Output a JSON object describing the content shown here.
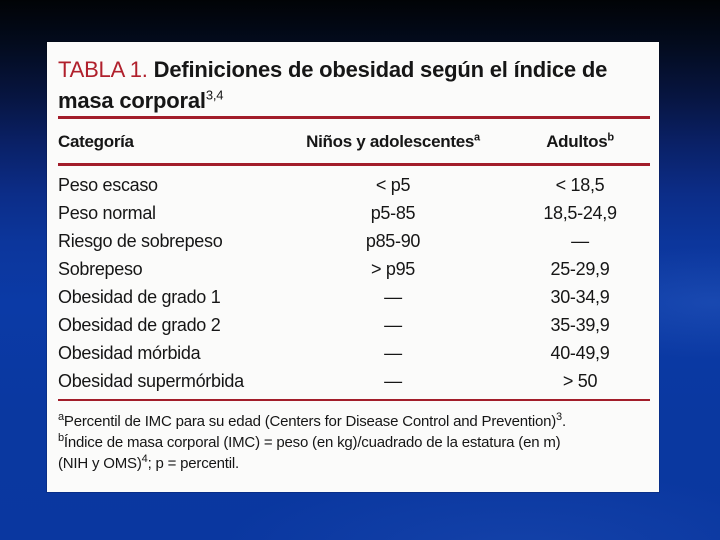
{
  "colors": {
    "title-red": "#b0202c",
    "accent-red": "#a21d2a",
    "text": "#161616",
    "bg-blue": "#0b3aa4"
  },
  "table_card": {
    "title": {
      "label": "TABLA 1.",
      "line1": "Definiciones de obesidad según el índice de",
      "line2": "masa corporal",
      "superscript": "3,4"
    },
    "columns": [
      {
        "label": "Categoría",
        "superscript": ""
      },
      {
        "label": "Niños y adolescentes",
        "superscript": "a"
      },
      {
        "label": "Adultos",
        "superscript": "b"
      }
    ],
    "rows": [
      {
        "categoria": "Peso escaso",
        "ninos": "< p5",
        "adultos": "< 18,5"
      },
      {
        "categoria": "Peso normal",
        "ninos": "p5-85",
        "adultos": "18,5-24,9"
      },
      {
        "categoria": "Riesgo de sobrepeso",
        "ninos": "p85-90",
        "adultos": "—"
      },
      {
        "categoria": "Sobrepeso",
        "ninos": "> p95",
        "adultos": "25-29,9"
      },
      {
        "categoria": "Obesidad de grado 1",
        "ninos": "—",
        "adultos": "30-34,9"
      },
      {
        "categoria": "Obesidad de grado 2",
        "ninos": "—",
        "adultos": "35-39,9"
      },
      {
        "categoria": "Obesidad mórbida",
        "ninos": "—",
        "adultos": "40-49,9"
      },
      {
        "categoria": "Obesidad supermórbida",
        "ninos": "—",
        "adultos": "> 50"
      }
    ],
    "footnotes": {
      "a": {
        "sup": "a",
        "text": "Percentil de IMC para su edad (Centers for Disease Control and Prevention)",
        "sup_end": "3",
        "tail": "."
      },
      "b": {
        "sup": "b",
        "line1": "Índice de masa corporal (IMC) = peso (en kg)/cuadrado de la estatura (en m)",
        "line2": "(NIH y OMS)",
        "sup_end": "4",
        "tail": "; p = percentil."
      }
    }
  }
}
